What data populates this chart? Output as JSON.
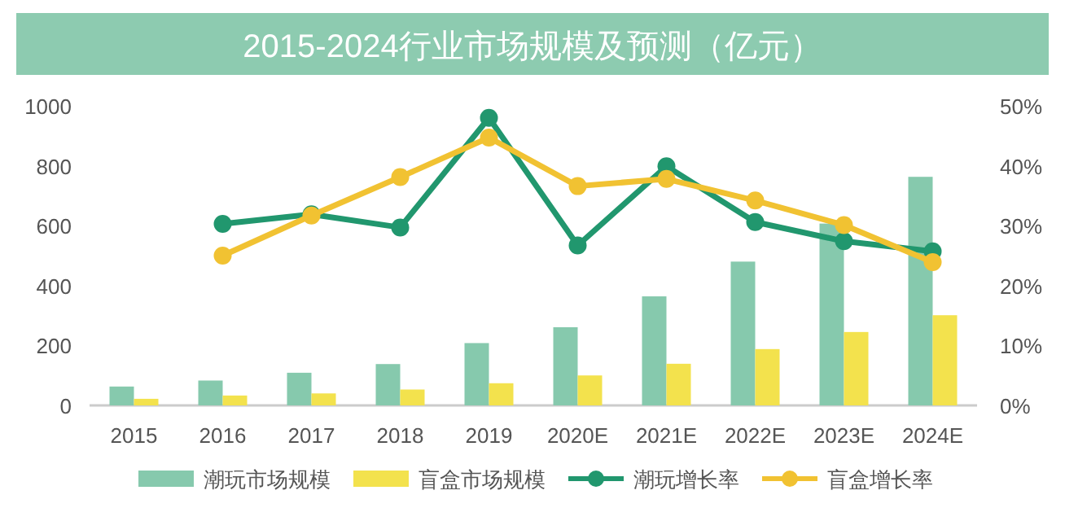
{
  "chart_data": {
    "type": "bar",
    "title": "2015-2024行业市场规模及预测（亿元）",
    "categories": [
      "2015",
      "2016",
      "2017",
      "2018",
      "2019",
      "2020E",
      "2021E",
      "2022E",
      "2023E",
      "2024E"
    ],
    "series": [
      {
        "name": "潮玩市场规模",
        "color": "#86c9ad",
        "values": [
          63,
          83,
          109,
          138,
          208,
          261,
          364,
          480,
          607,
          763
        ]
      },
      {
        "name": "盲盒市场规模",
        "color": "#f3e24d",
        "values": [
          22,
          33,
          40,
          53,
          74,
          100,
          139,
          188,
          245,
          301
        ]
      },
      {
        "name": "潮玩增长率",
        "type": "line",
        "axis": "y2",
        "color": "#21976e",
        "values": [
          null,
          30.3,
          31.9,
          29.7,
          48.0,
          26.7,
          39.9,
          30.6,
          27.4,
          25.7
        ]
      },
      {
        "name": "盲盒增长率",
        "type": "line",
        "axis": "y2",
        "color": "#f1c232",
        "values": [
          null,
          25.0,
          31.7,
          38.1,
          44.7,
          36.6,
          37.8,
          34.2,
          30.1,
          23.9
        ]
      }
    ],
    "ylim": [
      0,
      1000
    ],
    "yticks": [
      0,
      200,
      400,
      600,
      800,
      1000
    ],
    "y2lim": [
      0,
      50
    ],
    "y2ticks": [
      {
        "value": 0,
        "label": "0%"
      },
      {
        "value": 10,
        "label": "10%"
      },
      {
        "value": 20,
        "label": "20%"
      },
      {
        "value": 30,
        "label": "30%"
      },
      {
        "value": 40,
        "label": "40%"
      },
      {
        "value": 50,
        "label": "50%"
      }
    ],
    "grid": false,
    "legend": "bottom",
    "marker": "circle"
  }
}
